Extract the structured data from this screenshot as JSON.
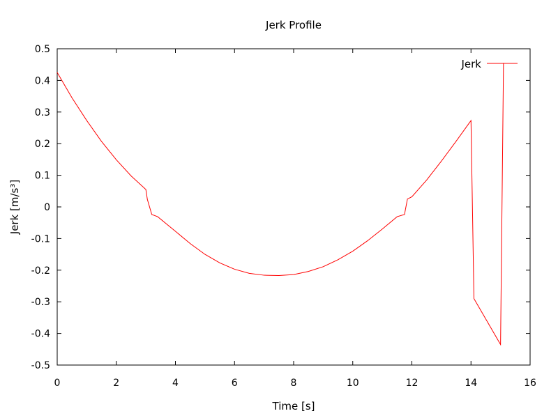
{
  "chart_data": {
    "type": "line",
    "title": "Jerk Profile",
    "xlabel": "Time [s]",
    "ylabel": "Jerk [m/s³]",
    "xlim": [
      0,
      16
    ],
    "ylim": [
      -0.5,
      0.5
    ],
    "xticks": [
      0,
      2,
      4,
      6,
      8,
      10,
      12,
      14,
      16
    ],
    "xtick_labels": [
      "0",
      "2",
      "4",
      "6",
      "8",
      "10",
      "12",
      "14",
      "16"
    ],
    "yticks": [
      0.5,
      0.4,
      0.3,
      0.2,
      0.1,
      0,
      -0.1,
      -0.2,
      -0.3,
      -0.4,
      -0.5
    ],
    "ytick_labels": [
      "0.5",
      "0.4",
      "0.3",
      "0.2",
      "0.1",
      "0",
      "-0.1",
      "-0.2",
      "-0.3",
      "-0.4",
      "-0.5"
    ],
    "grid": false,
    "legend_position": "top-right",
    "series": [
      {
        "name": "Jerk",
        "color": "#ff0000",
        "x": [
          0,
          0.5,
          1.0,
          1.5,
          2.0,
          2.5,
          3.0,
          3.05,
          3.2,
          3.4,
          4.0,
          4.5,
          5.0,
          5.5,
          6.0,
          6.5,
          7.0,
          7.5,
          8.0,
          8.5,
          9.0,
          9.5,
          10.0,
          10.5,
          11.0,
          11.5,
          11.75,
          11.85,
          12.0,
          12.5,
          13.0,
          13.5,
          14.0,
          14.1,
          15.0,
          15.1
        ],
        "y": [
          0.425,
          0.345,
          0.273,
          0.207,
          0.149,
          0.098,
          0.055,
          0.024,
          -0.024,
          -0.031,
          -0.077,
          -0.116,
          -0.15,
          -0.177,
          -0.197,
          -0.21,
          -0.216,
          -0.217,
          -0.214,
          -0.204,
          -0.189,
          -0.167,
          -0.14,
          -0.107,
          -0.07,
          -0.031,
          -0.024,
          0.025,
          0.032,
          0.085,
          0.145,
          0.208,
          0.273,
          -0.29,
          -0.435,
          0.455
        ]
      }
    ]
  }
}
